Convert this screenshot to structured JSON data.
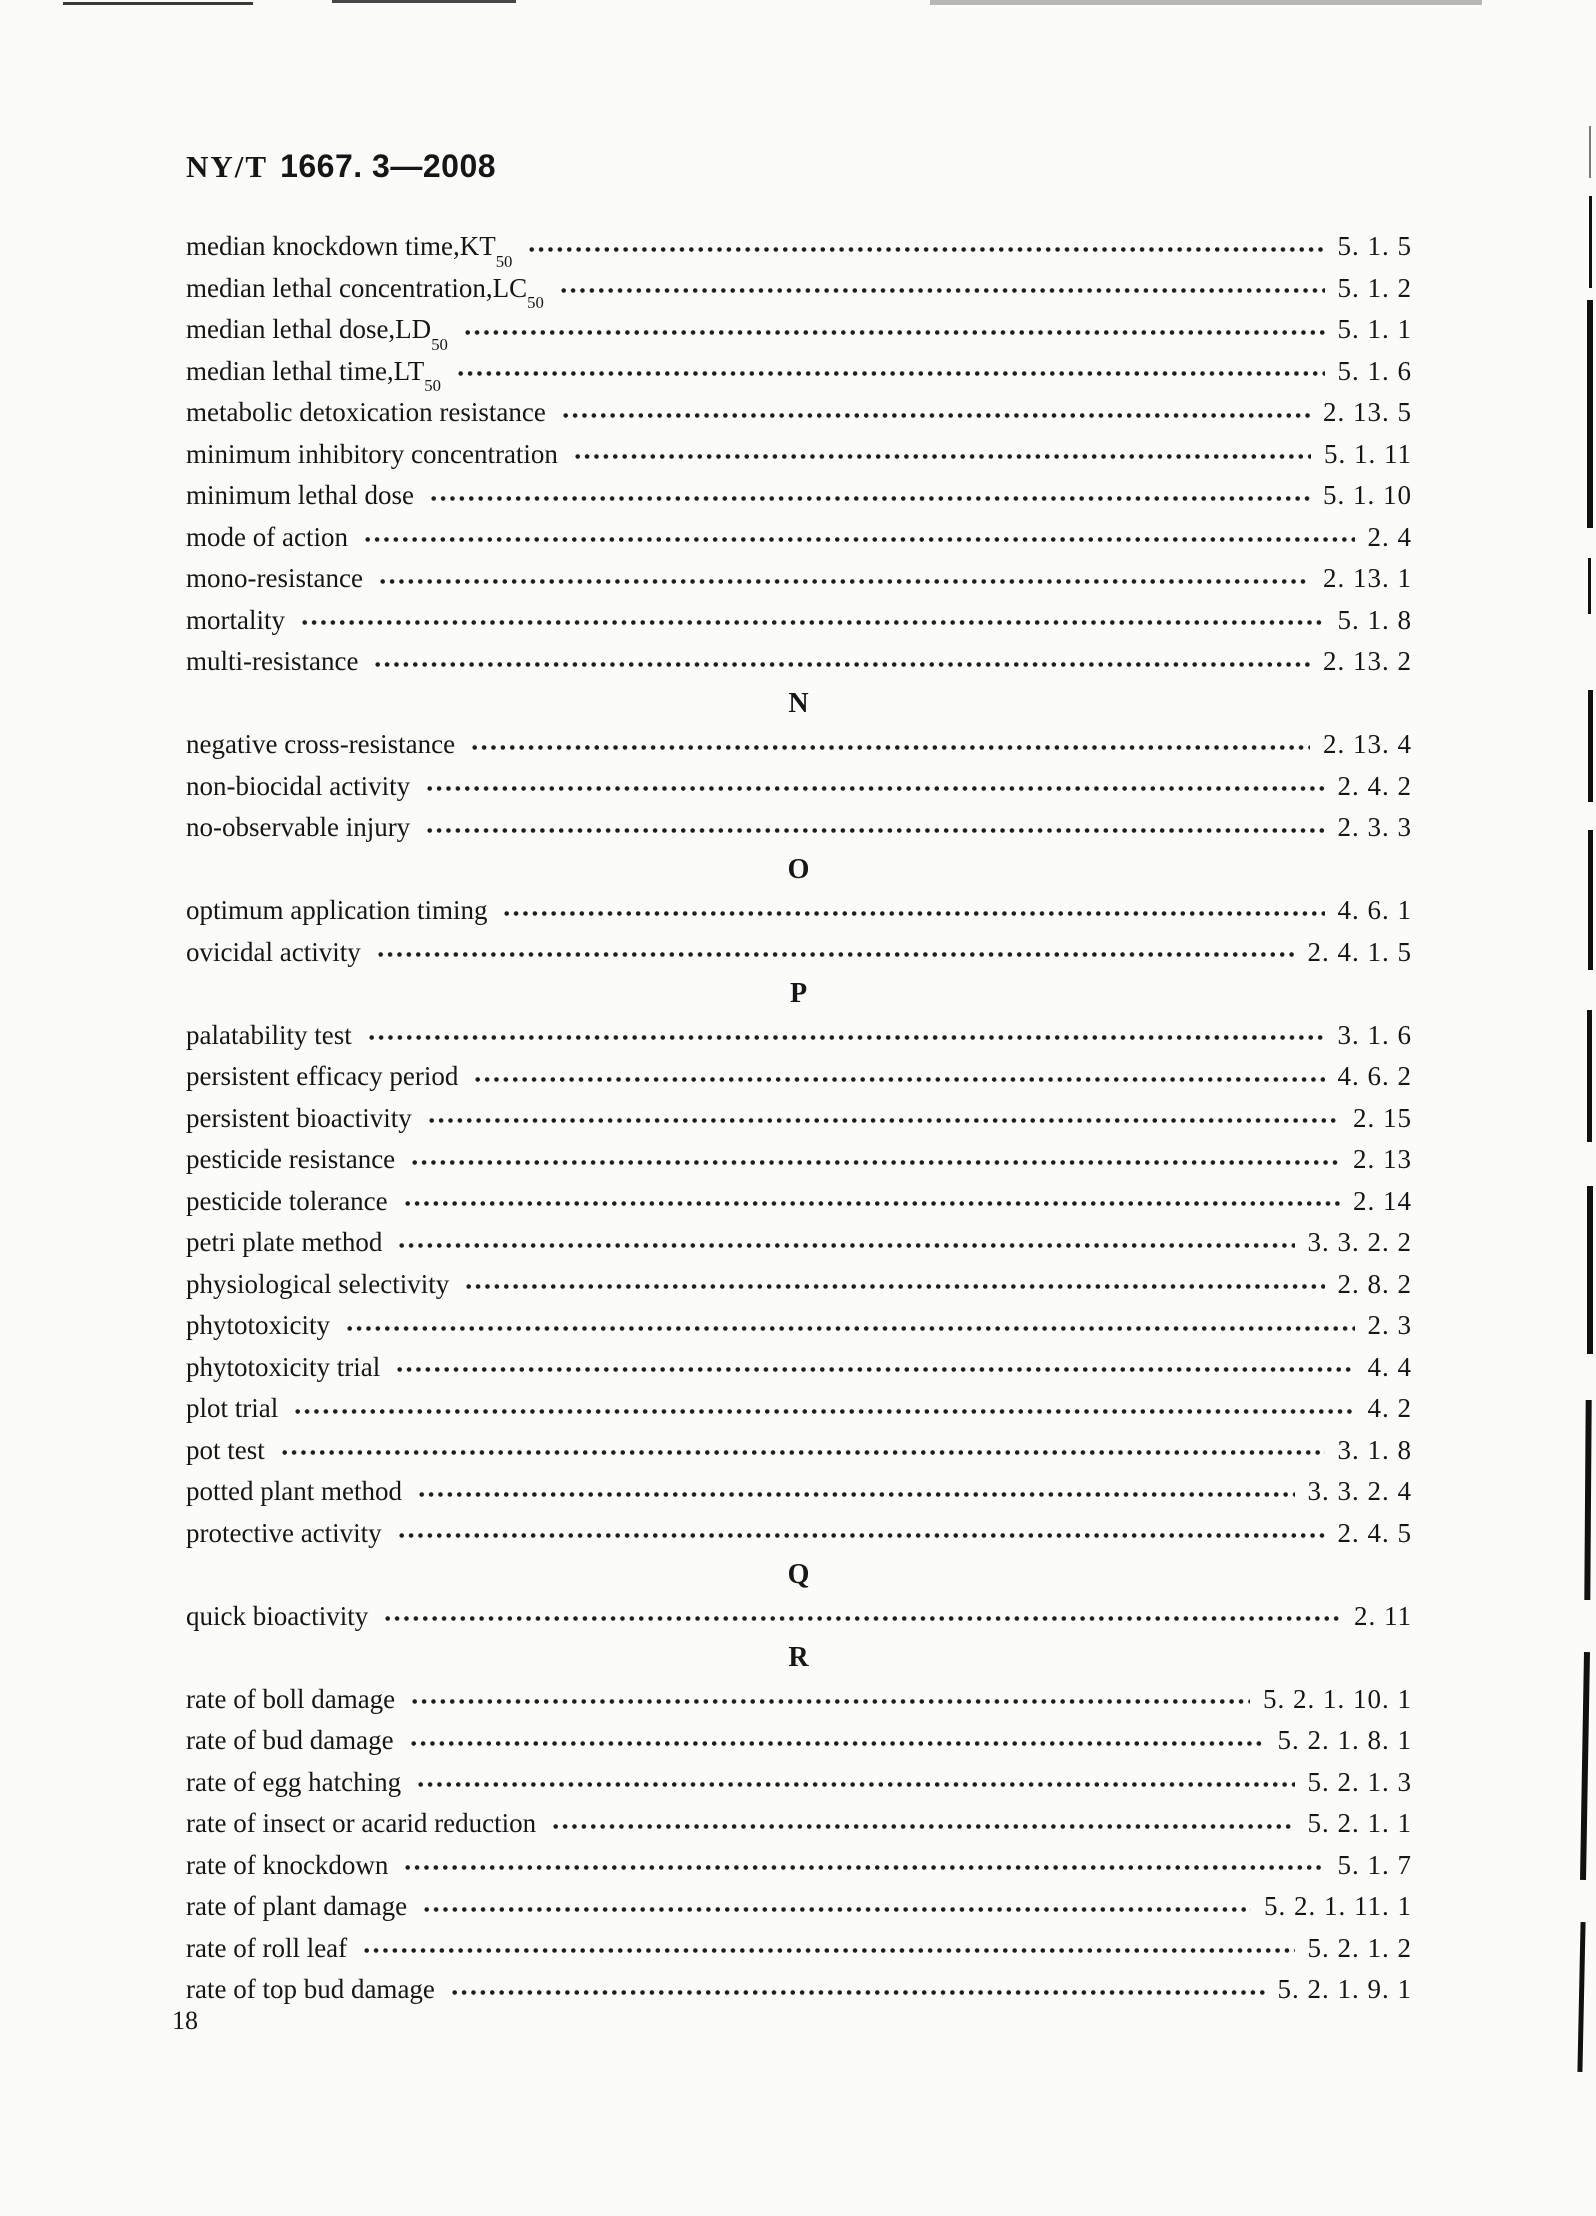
{
  "page": {
    "header": {
      "code_prefix": "NY/T",
      "code_number": "1667. 3—2008"
    },
    "page_number": "18"
  },
  "index": {
    "items": [
      {
        "type": "entry",
        "term": "median knockdown time,KT",
        "sub": "50",
        "ref": "5. 1. 5"
      },
      {
        "type": "entry",
        "term": "median lethal concentration,LC",
        "sub": "50",
        "ref": "5. 1. 2"
      },
      {
        "type": "entry",
        "term": "median lethal dose,LD",
        "sub": "50",
        "ref": "5. 1. 1"
      },
      {
        "type": "entry",
        "term": "median lethal time,LT",
        "sub": "50",
        "ref": "5. 1. 6"
      },
      {
        "type": "entry",
        "term": "metabolic detoxication resistance",
        "ref": "2. 13. 5"
      },
      {
        "type": "entry",
        "term": "minimum inhibitory concentration",
        "ref": "5. 1. 11"
      },
      {
        "type": "entry",
        "term": "minimum lethal dose",
        "ref": "5. 1. 10"
      },
      {
        "type": "entry",
        "term": "mode of action",
        "ref": "2. 4"
      },
      {
        "type": "entry",
        "term": "mono-resistance",
        "ref": "2. 13. 1"
      },
      {
        "type": "entry",
        "term": "mortality",
        "ref": "5. 1. 8"
      },
      {
        "type": "entry",
        "term": "multi-resistance",
        "ref": "2. 13. 2"
      },
      {
        "type": "letter",
        "label": "N"
      },
      {
        "type": "entry",
        "term": "negative cross-resistance",
        "ref": "2. 13. 4"
      },
      {
        "type": "entry",
        "term": "non-biocidal activity",
        "ref": "2. 4. 2"
      },
      {
        "type": "entry",
        "term": "no-observable injury",
        "ref": "2. 3. 3"
      },
      {
        "type": "letter",
        "label": "O"
      },
      {
        "type": "entry",
        "term": "optimum application timing",
        "ref": "4. 6. 1"
      },
      {
        "type": "entry",
        "term": "ovicidal activity",
        "ref": "2. 4. 1. 5"
      },
      {
        "type": "letter",
        "label": "P"
      },
      {
        "type": "entry",
        "term": "palatability test",
        "ref": "3. 1. 6"
      },
      {
        "type": "entry",
        "term": "persistent efficacy period",
        "ref": "4. 6. 2"
      },
      {
        "type": "entry",
        "term": "persistent bioactivity",
        "ref": "2. 15"
      },
      {
        "type": "entry",
        "term": "pesticide resistance",
        "ref": "2. 13"
      },
      {
        "type": "entry",
        "term": "pesticide tolerance",
        "ref": "2. 14"
      },
      {
        "type": "entry",
        "term": "petri plate method",
        "ref": "3. 3. 2. 2"
      },
      {
        "type": "entry",
        "term": "physiological selectivity",
        "ref": "2. 8. 2"
      },
      {
        "type": "entry",
        "term": "phytotoxicity",
        "ref": "2. 3"
      },
      {
        "type": "entry",
        "term": "phytotoxicity trial",
        "ref": "4. 4"
      },
      {
        "type": "entry",
        "term": "plot trial",
        "ref": "4. 2"
      },
      {
        "type": "entry",
        "term": "pot test",
        "ref": "3. 1. 8"
      },
      {
        "type": "entry",
        "term": "potted plant method",
        "ref": "3. 3. 2. 4"
      },
      {
        "type": "entry",
        "term": "protective activity",
        "ref": "2. 4. 5"
      },
      {
        "type": "letter",
        "label": "Q"
      },
      {
        "type": "entry",
        "term": "quick bioactivity",
        "ref": "2. 11"
      },
      {
        "type": "letter",
        "label": "R"
      },
      {
        "type": "entry",
        "term": "rate of boll damage",
        "ref": "5. 2. 1. 10. 1"
      },
      {
        "type": "entry",
        "term": "rate of bud damage",
        "ref": "5. 2. 1. 8. 1"
      },
      {
        "type": "entry",
        "term": "rate of egg hatching",
        "ref": "5. 2. 1. 3"
      },
      {
        "type": "entry",
        "term": "rate of insect or acarid reduction",
        "ref": "5. 2. 1. 1"
      },
      {
        "type": "entry",
        "term": "rate of knockdown",
        "ref": "5. 1. 7"
      },
      {
        "type": "entry",
        "term": "rate of plant damage",
        "ref": "5. 2. 1. 11. 1"
      },
      {
        "type": "entry",
        "term": "rate of roll leaf",
        "ref": "5. 2. 1. 2"
      },
      {
        "type": "entry",
        "term": "rate of top bud damage",
        "ref": "5. 2. 1. 9. 1"
      }
    ]
  }
}
